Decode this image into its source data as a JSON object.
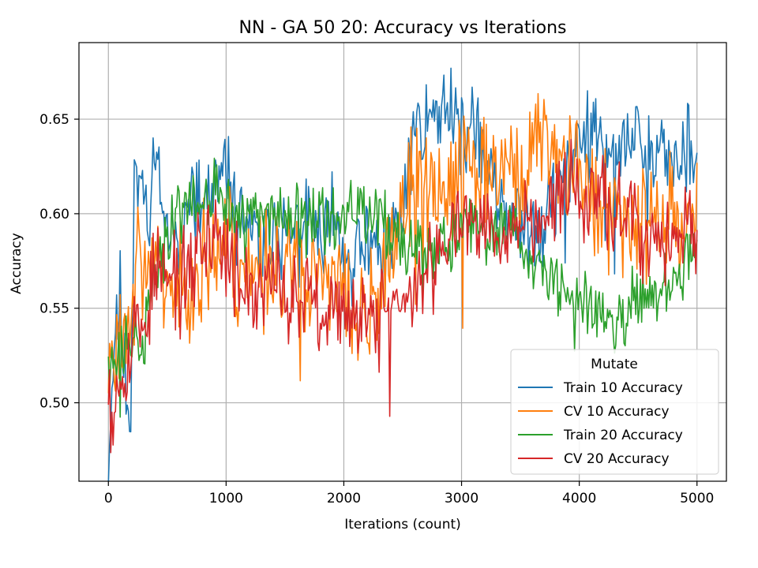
{
  "chart_data": {
    "type": "line",
    "title": "NN - GA 50 20: Accuracy vs Iterations",
    "xlabel": "Iterations (count)",
    "ylabel": "Accuracy",
    "xlim": [
      -250,
      5250
    ],
    "ylim": [
      0.4585,
      0.6905
    ],
    "xticks": [
      0,
      1000,
      2000,
      3000,
      4000,
      5000
    ],
    "xtick_labels": [
      "0",
      "1000",
      "2000",
      "3000",
      "4000",
      "5000"
    ],
    "yticks": [
      0.5,
      0.55,
      0.6,
      0.65
    ],
    "ytick_labels": [
      "0.50",
      "0.55",
      "0.60",
      "0.65"
    ],
    "grid": true,
    "legend": {
      "title": "Mutate",
      "placement": "lower-right"
    },
    "x_step": 10,
    "series": [
      {
        "name": "Train 10 Accuracy",
        "color": "#1f77b4",
        "anchors": [
          [
            0,
            0.471
          ],
          [
            40,
            0.52
          ],
          [
            100,
            0.565
          ],
          [
            150,
            0.505
          ],
          [
            190,
            0.482
          ],
          [
            220,
            0.64
          ],
          [
            280,
            0.61
          ],
          [
            350,
            0.59
          ],
          [
            400,
            0.65
          ],
          [
            450,
            0.61
          ],
          [
            500,
            0.585
          ],
          [
            600,
            0.595
          ],
          [
            700,
            0.61
          ],
          [
            800,
            0.6
          ],
          [
            900,
            0.615
          ],
          [
            1000,
            0.625
          ],
          [
            1100,
            0.6
          ],
          [
            1200,
            0.59
          ],
          [
            1300,
            0.58
          ],
          [
            1400,
            0.595
          ],
          [
            1500,
            0.59
          ],
          [
            1600,
            0.585
          ],
          [
            1700,
            0.6
          ],
          [
            1800,
            0.59
          ],
          [
            1900,
            0.595
          ],
          [
            2000,
            0.58
          ],
          [
            2100,
            0.575
          ],
          [
            2200,
            0.585
          ],
          [
            2300,
            0.575
          ],
          [
            2400,
            0.585
          ],
          [
            2500,
            0.6
          ],
          [
            2600,
            0.645
          ],
          [
            2700,
            0.65
          ],
          [
            2800,
            0.655
          ],
          [
            2900,
            0.66
          ],
          [
            3000,
            0.645
          ],
          [
            3100,
            0.64
          ],
          [
            3200,
            0.63
          ],
          [
            3300,
            0.61
          ],
          [
            3400,
            0.6
          ],
          [
            3500,
            0.59
          ],
          [
            3600,
            0.595
          ],
          [
            3700,
            0.6
          ],
          [
            3800,
            0.61
          ],
          [
            3900,
            0.625
          ],
          [
            4000,
            0.64
          ],
          [
            4100,
            0.645
          ],
          [
            4200,
            0.64
          ],
          [
            4300,
            0.63
          ],
          [
            4400,
            0.635
          ],
          [
            4500,
            0.64
          ],
          [
            4600,
            0.635
          ],
          [
            4700,
            0.635
          ],
          [
            4800,
            0.63
          ],
          [
            4900,
            0.632
          ],
          [
            5000,
            0.633
          ]
        ],
        "noise": 0.018,
        "seed": 11
      },
      {
        "name": "CV 10 Accuracy",
        "color": "#ff7f0e",
        "anchors": [
          [
            0,
            0.52
          ],
          [
            40,
            0.53
          ],
          [
            100,
            0.54
          ],
          [
            150,
            0.545
          ],
          [
            200,
            0.56
          ],
          [
            250,
            0.58
          ],
          [
            300,
            0.57
          ],
          [
            400,
            0.575
          ],
          [
            470,
            0.56
          ],
          [
            500,
            0.57
          ],
          [
            600,
            0.56
          ],
          [
            700,
            0.565
          ],
          [
            800,
            0.575
          ],
          [
            900,
            0.58
          ],
          [
            1000,
            0.59
          ],
          [
            1100,
            0.57
          ],
          [
            1200,
            0.565
          ],
          [
            1300,
            0.57
          ],
          [
            1400,
            0.575
          ],
          [
            1500,
            0.57
          ],
          [
            1600,
            0.575
          ],
          [
            1700,
            0.57
          ],
          [
            1800,
            0.565
          ],
          [
            1900,
            0.56
          ],
          [
            2000,
            0.56
          ],
          [
            2100,
            0.545
          ],
          [
            2200,
            0.55
          ],
          [
            2300,
            0.56
          ],
          [
            2400,
            0.59
          ],
          [
            2500,
            0.61
          ],
          [
            2600,
            0.62
          ],
          [
            2700,
            0.615
          ],
          [
            2800,
            0.61
          ],
          [
            2900,
            0.605
          ],
          [
            3000,
            0.62
          ],
          [
            3100,
            0.625
          ],
          [
            3200,
            0.63
          ],
          [
            3300,
            0.625
          ],
          [
            3400,
            0.62
          ],
          [
            3500,
            0.615
          ],
          [
            3600,
            0.635
          ],
          [
            3700,
            0.64
          ],
          [
            3800,
            0.635
          ],
          [
            3900,
            0.63
          ],
          [
            4000,
            0.62
          ],
          [
            4100,
            0.61
          ],
          [
            4200,
            0.605
          ],
          [
            4300,
            0.6
          ],
          [
            4400,
            0.605
          ],
          [
            4500,
            0.6
          ],
          [
            4600,
            0.6
          ],
          [
            4700,
            0.595
          ],
          [
            4800,
            0.6
          ],
          [
            4900,
            0.6
          ],
          [
            5000,
            0.6
          ]
        ],
        "noise": 0.024,
        "seed": 23
      },
      {
        "name": "Train 20 Accuracy",
        "color": "#2ca02c",
        "anchors": [
          [
            0,
            0.527
          ],
          [
            50,
            0.52
          ],
          [
            100,
            0.53
          ],
          [
            200,
            0.532
          ],
          [
            300,
            0.53
          ],
          [
            350,
            0.55
          ],
          [
            400,
            0.57
          ],
          [
            500,
            0.59
          ],
          [
            600,
            0.6
          ],
          [
            700,
            0.605
          ],
          [
            800,
            0.605
          ],
          [
            900,
            0.61
          ],
          [
            1000,
            0.605
          ],
          [
            1100,
            0.6
          ],
          [
            1200,
            0.595
          ],
          [
            1300,
            0.6
          ],
          [
            1400,
            0.6
          ],
          [
            1500,
            0.595
          ],
          [
            1600,
            0.6
          ],
          [
            1700,
            0.605
          ],
          [
            1800,
            0.595
          ],
          [
            1900,
            0.6
          ],
          [
            2000,
            0.595
          ],
          [
            2100,
            0.6
          ],
          [
            2200,
            0.595
          ],
          [
            2300,
            0.595
          ],
          [
            2400,
            0.59
          ],
          [
            2500,
            0.585
          ],
          [
            2600,
            0.58
          ],
          [
            2700,
            0.575
          ],
          [
            2800,
            0.58
          ],
          [
            2900,
            0.585
          ],
          [
            3000,
            0.59
          ],
          [
            3100,
            0.59
          ],
          [
            3200,
            0.585
          ],
          [
            3300,
            0.59
          ],
          [
            3400,
            0.595
          ],
          [
            3500,
            0.59
          ],
          [
            3600,
            0.575
          ],
          [
            3700,
            0.57
          ],
          [
            3800,
            0.565
          ],
          [
            3900,
            0.56
          ],
          [
            4000,
            0.555
          ],
          [
            4100,
            0.55
          ],
          [
            4200,
            0.545
          ],
          [
            4300,
            0.545
          ],
          [
            4400,
            0.55
          ],
          [
            4500,
            0.555
          ],
          [
            4600,
            0.56
          ],
          [
            4700,
            0.565
          ],
          [
            4800,
            0.57
          ],
          [
            4900,
            0.575
          ],
          [
            5000,
            0.59
          ]
        ],
        "noise": 0.014,
        "seed": 37
      },
      {
        "name": "CV 20 Accuracy",
        "color": "#d62728",
        "anchors": [
          [
            0,
            0.52
          ],
          [
            30,
            0.48
          ],
          [
            60,
            0.5
          ],
          [
            100,
            0.52
          ],
          [
            200,
            0.53
          ],
          [
            300,
            0.54
          ],
          [
            400,
            0.575
          ],
          [
            500,
            0.565
          ],
          [
            600,
            0.56
          ],
          [
            700,
            0.57
          ],
          [
            800,
            0.585
          ],
          [
            900,
            0.595
          ],
          [
            1000,
            0.58
          ],
          [
            1100,
            0.57
          ],
          [
            1200,
            0.555
          ],
          [
            1300,
            0.56
          ],
          [
            1400,
            0.565
          ],
          [
            1500,
            0.56
          ],
          [
            1600,
            0.555
          ],
          [
            1700,
            0.56
          ],
          [
            1800,
            0.555
          ],
          [
            1900,
            0.55
          ],
          [
            2000,
            0.55
          ],
          [
            2100,
            0.545
          ],
          [
            2200,
            0.55
          ],
          [
            2300,
            0.545
          ],
          [
            2400,
            0.55
          ],
          [
            2500,
            0.555
          ],
          [
            2600,
            0.56
          ],
          [
            2700,
            0.565
          ],
          [
            2800,
            0.575
          ],
          [
            2900,
            0.585
          ],
          [
            3000,
            0.59
          ],
          [
            3100,
            0.595
          ],
          [
            3200,
            0.595
          ],
          [
            3300,
            0.59
          ],
          [
            3400,
            0.595
          ],
          [
            3500,
            0.6
          ],
          [
            3600,
            0.595
          ],
          [
            3700,
            0.6
          ],
          [
            3800,
            0.605
          ],
          [
            3900,
            0.61
          ],
          [
            4000,
            0.615
          ],
          [
            4100,
            0.61
          ],
          [
            4200,
            0.605
          ],
          [
            4300,
            0.6
          ],
          [
            4400,
            0.595
          ],
          [
            4500,
            0.59
          ],
          [
            4600,
            0.585
          ],
          [
            4700,
            0.58
          ],
          [
            4800,
            0.585
          ],
          [
            4900,
            0.59
          ],
          [
            5000,
            0.59
          ]
        ],
        "noise": 0.02,
        "seed": 53
      }
    ]
  }
}
